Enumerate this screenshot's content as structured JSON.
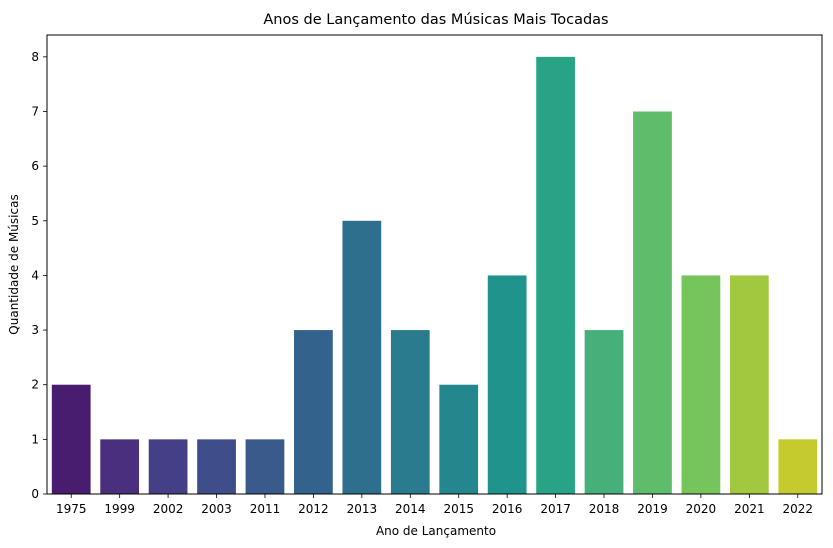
{
  "chart_data": {
    "type": "bar",
    "title": "Anos de Lançamento das Músicas Mais Tocadas",
    "xlabel": "Ano de Lançamento",
    "ylabel": "Quantidade de Músicas",
    "categories": [
      "1975",
      "1999",
      "2002",
      "2003",
      "2011",
      "2012",
      "2013",
      "2014",
      "2015",
      "2016",
      "2017",
      "2018",
      "2019",
      "2020",
      "2021",
      "2022"
    ],
    "values": [
      2,
      1,
      1,
      1,
      1,
      3,
      5,
      3,
      2,
      4,
      8,
      3,
      7,
      4,
      4,
      1
    ],
    "colors": [
      "#481c6e",
      "#4a2f7e",
      "#453f88",
      "#3f4d8a",
      "#3a5a8c",
      "#33638d",
      "#2e6f8e",
      "#2a7b8e",
      "#24878e",
      "#20938c",
      "#29a386",
      "#47b07a",
      "#5ebc6b",
      "#75c55c",
      "#a2c83f",
      "#c5cb2e"
    ],
    "yticks": [
      0,
      1,
      2,
      3,
      4,
      5,
      6,
      7,
      8
    ],
    "ylim": [
      0,
      8.4
    ],
    "grid": false,
    "palette": "viridis"
  }
}
